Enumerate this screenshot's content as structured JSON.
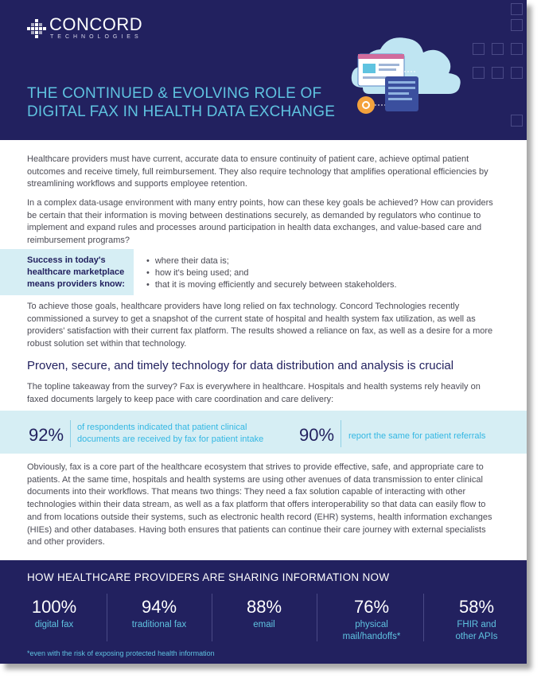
{
  "logo": {
    "name": "CONCORD",
    "sub": "TECHNOLOGIES"
  },
  "title_lines": [
    "THE CONTINUED & EVOLVING ROLE OF",
    "DIGITAL FAX IN HEALTH DATA EXCHANGE"
  ],
  "intro": "Healthcare providers must have current, accurate data to ensure continuity of patient care, achieve optimal patient outcomes and receive timely, full reimbursement. They also require technology that amplifies operational efficiencies by streamlining workflows and supports employee retention.",
  "question": "In a complex data-usage environment with many entry points, how can these key goals be achieved? How can providers be certain that their information is moving between destinations securely, as demanded by regulators who continue to implement and expand rules and processes around participation in health data exchanges, and value-based care and reimbursement programs?",
  "callout": {
    "title_lines": [
      "Success in today's",
      "healthcare marketplace",
      "means providers know:"
    ],
    "bullets": [
      "where their data is;",
      "how it's being used; and",
      "that it is moving efficiently and securely between stakeholders."
    ]
  },
  "survey_para": "To achieve those goals, healthcare providers have long relied on fax technology. Concord Technologies recently commissioned a survey to get a snapshot of the current state of hospital and health system fax utilization, as well as providers' satisfaction with their current fax platform. The results showed a reliance on fax, as well as a desire for a more robust solution set within that technology.",
  "section_heading": "Proven, secure, and timely technology for data distribution and analysis is crucial",
  "takeaway": "The topline takeaway from the survey? Fax is everywhere in healthcare. Hospitals and health systems rely heavily on faxed documents largely to keep pace with care coordination and care delivery:",
  "stats": [
    {
      "value": "92%",
      "text_lines": [
        "of respondents indicated that patient clinical",
        "documents are received by fax for patient intake"
      ]
    },
    {
      "value": "90%",
      "text_lines": [
        "report the same for patient referrals"
      ]
    }
  ],
  "closing": "Obviously, fax is a core part of the healthcare ecosystem that strives to provide effective, safe, and appropriate care to patients. At the same time, hospitals and health systems are using other avenues of data transmission to enter clinical documents into their workflows. That means two things: They need a fax solution capable of interacting with other technologies within their data stream, as well as a fax platform that offers interoperability so that data can easily flow to and from locations outside their systems, such as electronic health record (EHR) systems, health information exchanges (HIEs) and other databases. Having both ensures that patients can continue their care journey with external specialists and other providers.",
  "footer": {
    "title": "HOW HEALTHCARE PROVIDERS ARE SHARING INFORMATION NOW",
    "stats": [
      {
        "value": "100%",
        "label_lines": [
          "digital fax"
        ]
      },
      {
        "value": "94%",
        "label_lines": [
          "traditional fax"
        ]
      },
      {
        "value": "88%",
        "label_lines": [
          "email"
        ]
      },
      {
        "value": "76%",
        "label_lines": [
          "physical",
          "mail/handoffs*"
        ]
      },
      {
        "value": "58%",
        "label_lines": [
          "FHIR and",
          "other APIs"
        ]
      }
    ],
    "footnote": "*even with the risk of exposing protected health information"
  },
  "colors": {
    "navy": "#22215f",
    "cyan": "#5fc3e0",
    "light_band": "#d6eef4",
    "stat_text": "#33b7e3"
  },
  "icons": [
    "concord-logo-icon",
    "cloud-documents-illustration",
    "gear-icon"
  ]
}
